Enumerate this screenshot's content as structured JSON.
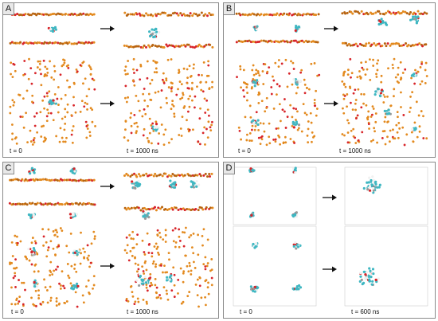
{
  "colors": {
    "orange": "#e38a1f",
    "orange_dark": "#b86410",
    "red": "#d8252a",
    "cyan": "#3fb7c2",
    "white_bead": "#f1f1f1",
    "gray_bead": "#9a9a9a",
    "frame_gray": "#8a8a8a"
  },
  "panels": [
    {
      "label": "A",
      "t_start": "t = 0",
      "t_end": "t = 1000 ns"
    },
    {
      "label": "B",
      "t_start": "t = 0",
      "t_end": "t = 1000 ns"
    },
    {
      "label": "C",
      "t_start": "t = 0",
      "t_end": "t = 1000 ns"
    },
    {
      "label": "D",
      "t_start": "t = 0",
      "t_end": "t = 600 ns"
    }
  ],
  "icons": {
    "arrow": "arrow-right-icon"
  }
}
